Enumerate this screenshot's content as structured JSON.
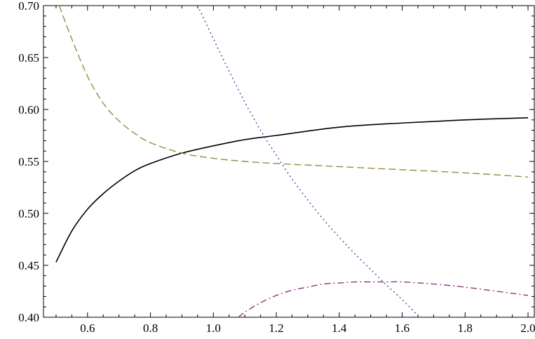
{
  "chart_data": {
    "type": "line",
    "title": "",
    "xlabel": "",
    "ylabel": "",
    "xlim": [
      0.46,
      2.02
    ],
    "ylim": [
      0.4,
      0.7
    ],
    "grid": false,
    "legend": "none",
    "x_ticks": [
      {
        "value": 0.6,
        "label": "0.6"
      },
      {
        "value": 0.8,
        "label": "0.8"
      },
      {
        "value": 1.0,
        "label": "1.0"
      },
      {
        "value": 1.2,
        "label": "1.2"
      },
      {
        "value": 1.4,
        "label": "1.4"
      },
      {
        "value": 1.6,
        "label": "1.6"
      },
      {
        "value": 1.8,
        "label": "1.8"
      },
      {
        "value": 2.0,
        "label": "2.0"
      }
    ],
    "y_ticks": [
      {
        "value": 0.4,
        "label": "0.40"
      },
      {
        "value": 0.45,
        "label": "0.45"
      },
      {
        "value": 0.5,
        "label": "0.50"
      },
      {
        "value": 0.55,
        "label": "0.55"
      },
      {
        "value": 0.6,
        "label": "0.60"
      },
      {
        "value": 0.65,
        "label": "0.65"
      },
      {
        "value": 0.7,
        "label": "0.70"
      }
    ],
    "series": [
      {
        "style": "solid",
        "color": "#000000",
        "x": [
          0.5,
          0.55,
          0.6,
          0.65,
          0.7,
          0.75,
          0.8,
          0.9,
          1.0,
          1.1,
          1.2,
          1.4,
          1.6,
          1.8,
          2.0
        ],
        "y": [
          0.453,
          0.483,
          0.504,
          0.519,
          0.531,
          0.541,
          0.548,
          0.558,
          0.565,
          0.571,
          0.575,
          0.583,
          0.587,
          0.59,
          0.592
        ]
      },
      {
        "style": "dashed",
        "color": "#9b8a3c",
        "x": [
          0.51,
          0.55,
          0.6,
          0.65,
          0.7,
          0.75,
          0.8,
          0.9,
          1.0,
          1.1,
          1.2,
          1.4,
          1.6,
          1.8,
          2.0
        ],
        "y": [
          0.7,
          0.668,
          0.632,
          0.606,
          0.589,
          0.577,
          0.568,
          0.558,
          0.553,
          0.55,
          0.548,
          0.545,
          0.542,
          0.539,
          0.535
        ]
      },
      {
        "style": "dotted",
        "color": "#4a4aaa",
        "x": [
          0.95,
          1.0,
          1.05,
          1.1,
          1.15,
          1.2,
          1.25,
          1.3,
          1.35,
          1.4,
          1.45,
          1.5,
          1.55,
          1.6,
          1.655
        ],
        "y": [
          0.7,
          0.668,
          0.637,
          0.607,
          0.58,
          0.556,
          0.533,
          0.513,
          0.494,
          0.477,
          0.461,
          0.446,
          0.431,
          0.417,
          0.4
        ]
      },
      {
        "style": "dashdot",
        "color": "#8b3a7a",
        "x": [
          1.08,
          1.1,
          1.15,
          1.2,
          1.25,
          1.3,
          1.35,
          1.4,
          1.45,
          1.5,
          1.55,
          1.6,
          1.7,
          1.8,
          1.9,
          2.0
        ],
        "y": [
          0.4,
          0.405,
          0.414,
          0.421,
          0.426,
          0.429,
          0.432,
          0.433,
          0.434,
          0.434,
          0.434,
          0.434,
          0.432,
          0.429,
          0.425,
          0.421
        ]
      }
    ]
  }
}
